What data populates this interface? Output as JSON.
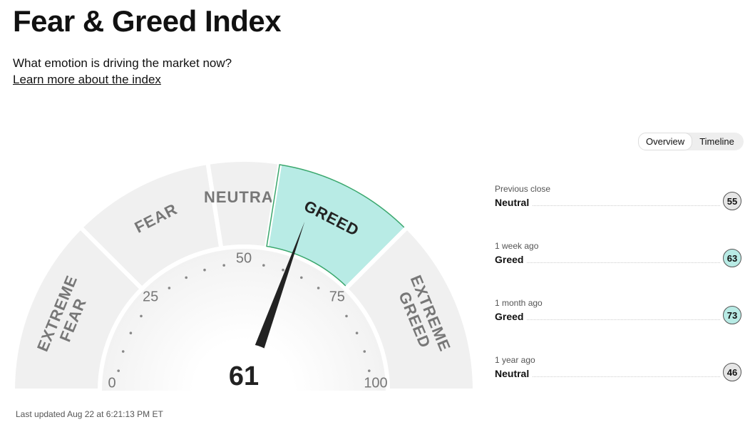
{
  "header": {
    "title": "Fear & Greed Index",
    "subtitle": "What emotion is driving the market now?",
    "link": "Learn more about the index"
  },
  "tabs": [
    "Overview",
    "Timeline"
  ],
  "gauge": {
    "score": 61,
    "ticks": [
      0,
      25,
      50,
      75,
      100
    ],
    "segments": [
      {
        "label": [
          "EXTREME",
          "FEAR"
        ],
        "range": [
          0,
          25
        ]
      },
      {
        "label": [
          "FEAR"
        ],
        "range": [
          25,
          45
        ]
      },
      {
        "label": [
          "NEUTRAL"
        ],
        "range": [
          45,
          55
        ]
      },
      {
        "label": [
          "GREED"
        ],
        "range": [
          55,
          75
        ]
      },
      {
        "label": [
          "EXTREME",
          "GREED"
        ],
        "range": [
          75,
          100
        ]
      }
    ],
    "color": "#f0f0f0",
    "highlight_color": "#b8ebe5",
    "highlight_stroke": "#3aa76d"
  },
  "history": [
    {
      "label": "Previous close",
      "rating": "Neutral",
      "value": 55,
      "color": "#e6e6e6"
    },
    {
      "label": "1 week ago",
      "rating": "Greed",
      "value": 63,
      "color": "#b8ebe5"
    },
    {
      "label": "1 month ago",
      "rating": "Greed",
      "value": 73,
      "color": "#b8ebe5"
    },
    {
      "label": "1 year ago",
      "rating": "Neutral",
      "value": 46,
      "color": "#e6e6e6"
    }
  ],
  "footer": "Last updated Aug 22 at 6:21:13 PM ET"
}
